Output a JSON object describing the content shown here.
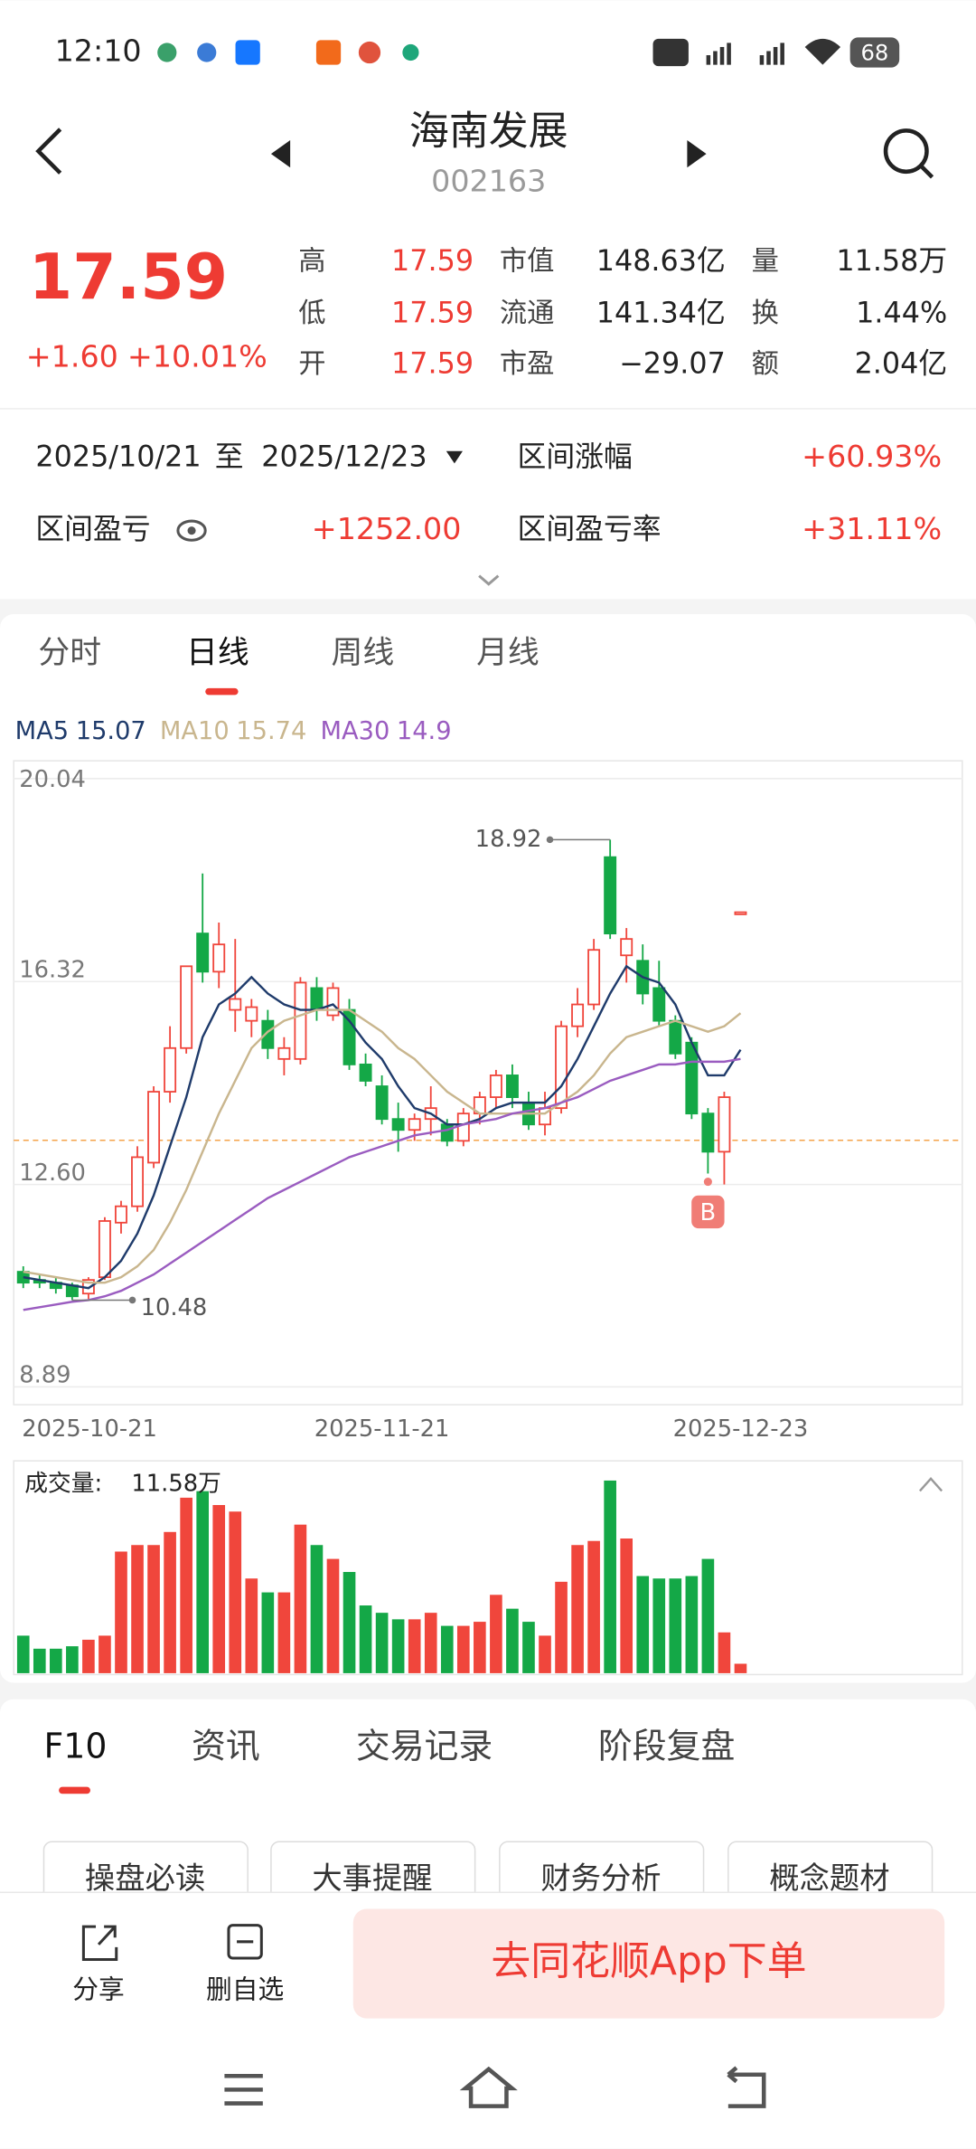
{
  "status_bar": {
    "time": "12:10",
    "battery": "68"
  },
  "header": {
    "title": "海南发展",
    "code": "002163"
  },
  "quote": {
    "price": "17.59",
    "change": "+1.60",
    "change_pct": "+10.01%",
    "stats": [
      [
        [
          "高",
          "17.59"
        ],
        [
          "市值",
          "148.63亿"
        ],
        [
          "量",
          "11.58万"
        ]
      ],
      [
        [
          "低",
          "17.59"
        ],
        [
          "流通",
          "141.34亿"
        ],
        [
          "换",
          "1.44%"
        ]
      ],
      [
        [
          "开",
          "17.59"
        ],
        [
          "市盈",
          "−29.07"
        ],
        [
          "额",
          "2.04亿"
        ]
      ]
    ]
  },
  "range": {
    "start": "2025/10/21",
    "sep": "至",
    "end": "2025/12/23",
    "gain_label": "区间涨幅",
    "gain": "+60.93%",
    "pnl_label": "区间盈亏",
    "pnl": "+1252.00",
    "pnl_rate_label": "区间盈亏率",
    "pnl_rate": "+31.11%"
  },
  "tabs": [
    "分时",
    "日线",
    "周线",
    "月线"
  ],
  "active_tab": 1,
  "chart_data": {
    "type": "candlestick",
    "up_color": "#f0463c",
    "down_color": "#14a847",
    "categories": [
      "2025-10-21",
      null,
      null,
      null,
      null,
      null,
      null,
      null,
      null,
      null,
      null,
      null,
      null,
      null,
      null,
      null,
      null,
      null,
      null,
      null,
      null,
      null,
      "2025-11-21",
      null,
      null,
      null,
      null,
      null,
      null,
      null,
      null,
      null,
      null,
      null,
      null,
      null,
      null,
      null,
      null,
      null,
      null,
      null,
      null,
      null,
      "2025-12-23"
    ],
    "open": [
      11.0,
      10.85,
      10.8,
      10.75,
      10.6,
      10.9,
      11.9,
      12.2,
      13.0,
      14.3,
      15.1,
      17.2,
      16.5,
      15.8,
      15.6,
      15.6,
      14.9,
      14.9,
      16.2,
      15.7,
      15.8,
      14.8,
      14.4,
      13.8,
      13.6,
      13.8,
      13.7,
      13.4,
      13.9,
      14.2,
      14.6,
      14.1,
      13.7,
      14.0,
      15.5,
      15.9,
      18.6,
      16.8,
      16.7,
      16.2,
      15.6,
      15.2,
      13.9,
      13.2,
      17.59
    ],
    "high": [
      11.1,
      10.95,
      10.9,
      10.8,
      10.9,
      12.0,
      12.3,
      13.3,
      14.4,
      15.5,
      16.6,
      18.3,
      17.4,
      17.1,
      16.0,
      15.8,
      15.3,
      16.4,
      16.4,
      16.3,
      16.0,
      15.0,
      14.6,
      14.1,
      13.9,
      14.4,
      13.8,
      14.0,
      14.3,
      14.7,
      14.8,
      14.3,
      14.3,
      15.6,
      16.2,
      17.1,
      18.92,
      17.3,
      17.0,
      16.7,
      15.7,
      15.3,
      14.0,
      14.3,
      17.59
    ],
    "low": [
      10.7,
      10.7,
      10.6,
      10.48,
      10.5,
      10.85,
      11.7,
      12.1,
      12.9,
      14.1,
      15.0,
      16.3,
      16.2,
      15.4,
      15.3,
      14.9,
      14.6,
      14.8,
      15.6,
      15.6,
      14.7,
      14.4,
      13.7,
      13.2,
      13.4,
      13.5,
      13.3,
      13.3,
      13.7,
      14.0,
      14.0,
      13.6,
      13.5,
      13.9,
      15.3,
      15.8,
      17.1,
      16.3,
      15.9,
      15.5,
      14.9,
      13.8,
      12.8,
      12.6,
      17.59
    ],
    "close": [
      10.8,
      10.8,
      10.7,
      10.55,
      10.85,
      11.93,
      12.2,
      13.1,
      14.3,
      15.1,
      16.6,
      16.5,
      17.0,
      16.0,
      15.85,
      15.1,
      15.1,
      16.3,
      15.8,
      16.2,
      14.8,
      14.5,
      13.8,
      13.6,
      13.8,
      14.0,
      13.4,
      13.9,
      14.2,
      14.6,
      14.2,
      13.7,
      14.0,
      15.5,
      15.9,
      16.9,
      17.2,
      17.1,
      16.1,
      15.6,
      15.0,
      13.9,
      13.2,
      14.2,
      17.59
    ],
    "series": [
      {
        "name": "MA5",
        "color": "#1f3b6b",
        "values": [
          10.9,
          10.85,
          10.8,
          10.75,
          10.7,
          10.9,
          11.2,
          11.7,
          12.4,
          13.3,
          14.2,
          15.3,
          15.9,
          16.1,
          16.4,
          16.1,
          15.9,
          15.8,
          15.8,
          15.9,
          15.6,
          15.2,
          14.9,
          14.4,
          14.0,
          13.9,
          13.7,
          13.7,
          13.8,
          14.0,
          14.1,
          14.1,
          14.1,
          14.4,
          14.9,
          15.5,
          16.1,
          16.6,
          16.4,
          16.3,
          15.9,
          15.2,
          14.6,
          14.6,
          15.07
        ]
      },
      {
        "name": "MA10",
        "color": "#c9b68e",
        "values": [
          11.0,
          10.95,
          10.9,
          10.85,
          10.8,
          10.8,
          10.9,
          11.1,
          11.4,
          11.9,
          12.5,
          13.2,
          13.9,
          14.5,
          15.1,
          15.4,
          15.6,
          15.7,
          15.8,
          15.8,
          15.8,
          15.6,
          15.4,
          15.1,
          14.9,
          14.6,
          14.3,
          14.1,
          13.9,
          13.9,
          13.9,
          13.9,
          13.9,
          14.1,
          14.3,
          14.6,
          15.0,
          15.3,
          15.4,
          15.5,
          15.6,
          15.5,
          15.4,
          15.5,
          15.74
        ]
      },
      {
        "name": "MA30",
        "color": "#9a5cc0",
        "values": [
          10.3,
          10.35,
          10.4,
          10.45,
          10.48,
          10.55,
          10.65,
          10.8,
          10.95,
          11.15,
          11.35,
          11.55,
          11.75,
          11.95,
          12.15,
          12.35,
          12.5,
          12.65,
          12.8,
          12.95,
          13.1,
          13.2,
          13.3,
          13.4,
          13.5,
          13.55,
          13.6,
          13.7,
          13.75,
          13.8,
          13.9,
          13.95,
          14.0,
          14.1,
          14.2,
          14.35,
          14.5,
          14.6,
          14.7,
          14.8,
          14.8,
          14.85,
          14.85,
          14.85,
          14.9
        ]
      }
    ],
    "ylim": [
      8.89,
      20.04
    ],
    "yticks": [
      8.89,
      {
        "value": 12.6,
        "label": "12.60"
      },
      16.32,
      20.04
    ],
    "grid": true,
    "reference_line": 13.41,
    "buy_marker": "B",
    "volume_title": "成交量:",
    "volume_last_label": "11.58万",
    "volume": [
      46,
      30,
      30,
      33,
      41,
      46,
      149,
      157,
      157,
      173,
      215,
      223,
      206,
      198,
      116,
      99,
      99,
      182,
      157,
      140,
      124,
      83,
      74,
      66,
      66,
      74,
      58,
      58,
      63,
      96,
      79,
      63,
      46,
      112,
      157,
      162,
      236,
      165,
      119,
      116,
      116,
      119,
      140,
      50,
      11.58
    ],
    "volume_ylim": [
      0,
      240
    ]
  },
  "bottom_tabs": [
    "F10",
    "资讯",
    "交易记录",
    "阶段复盘"
  ],
  "buttons": [
    "操盘必读",
    "大事提醒",
    "财务分析",
    "概念题材"
  ],
  "actions": {
    "share": "分享",
    "remove": "删自选",
    "order": "去同花顺App下单"
  }
}
